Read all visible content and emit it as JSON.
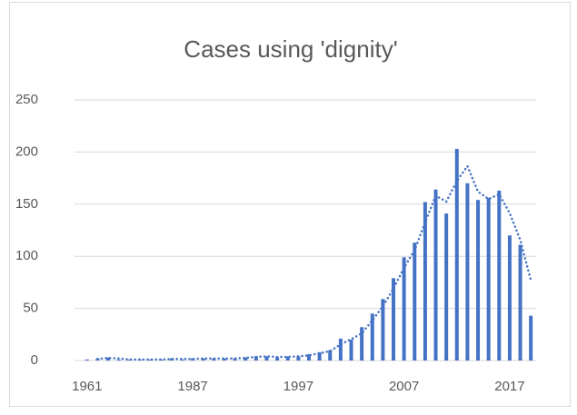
{
  "chart_data": {
    "type": "bar",
    "title": "Cases using 'dignity'",
    "categories": [
      "1961",
      null,
      null,
      null,
      null,
      null,
      null,
      null,
      null,
      null,
      "1987",
      null,
      null,
      null,
      null,
      null,
      null,
      null,
      null,
      null,
      "1997",
      null,
      null,
      null,
      null,
      null,
      null,
      null,
      null,
      null,
      "2007",
      null,
      null,
      null,
      null,
      null,
      null,
      null,
      null,
      null,
      "2017",
      null,
      null
    ],
    "values": [
      1,
      2,
      3,
      1,
      1,
      1,
      1,
      1,
      2,
      1,
      2,
      2,
      2,
      2,
      2,
      3,
      4,
      4,
      3,
      4,
      4,
      6,
      8,
      10,
      21,
      20,
      32,
      45,
      59,
      79,
      99,
      113,
      152,
      164,
      141,
      203,
      170,
      154,
      156,
      163,
      120,
      111,
      43
    ],
    "color": "#4472c4",
    "trendline": {
      "type": "moving_average",
      "period": 2
    },
    "ylim": [
      0,
      250
    ],
    "yticks": [
      0,
      50,
      100,
      150,
      200,
      250
    ],
    "grid": true
  }
}
